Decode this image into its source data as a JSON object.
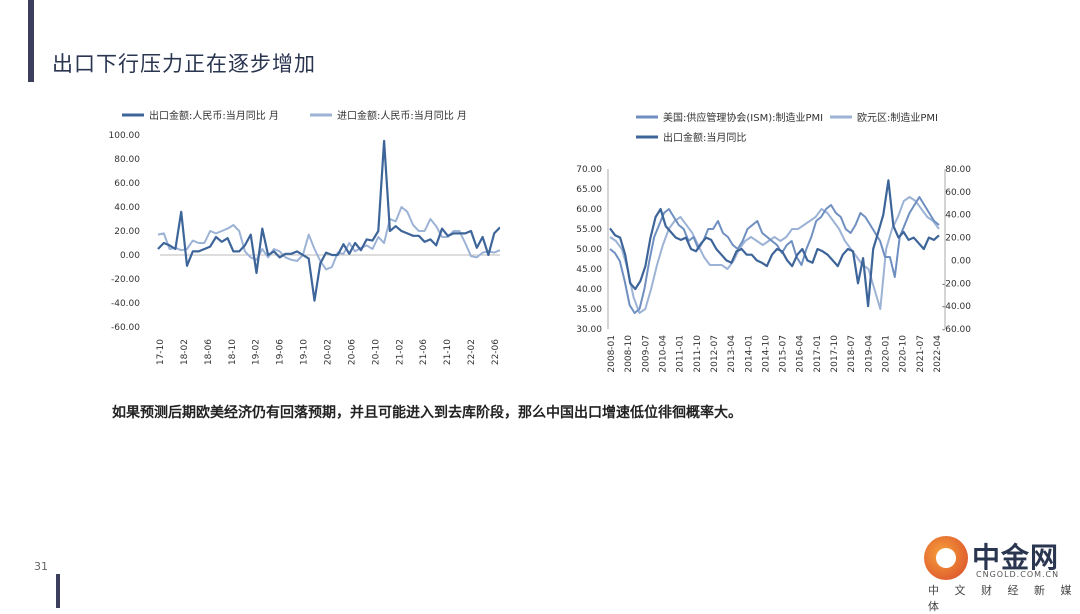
{
  "page": {
    "title": "出口下行压力正在逐步增加",
    "caption": "如果预测后期欧美经济仍有回落预期，并且可能进入到去库阶段，那么中国出口增速低位徘徊概率大。",
    "page_number": "31",
    "logo": {
      "name": "中金网",
      "domain": "CNGOLD.COM.CN",
      "tagline": "中 文 财 经 新 媒 体"
    }
  },
  "colors": {
    "dark_series": "#3e6599",
    "light_series": "#9db3d6",
    "title": "#2a3550"
  },
  "chart_data": [
    {
      "type": "line",
      "legend": [
        "出口金额:人民币:当月同比 月",
        "进口金额:人民币:当月同比 月"
      ],
      "ylim": [
        -60,
        100
      ],
      "yticks": [
        "100.00",
        "80.00",
        "60.00",
        "40.00",
        "20.00",
        "0.00",
        "-20.00",
        "-40.00",
        "-60.00"
      ],
      "xticks": [
        "2017-10",
        "2018-02",
        "2018-06",
        "2018-10",
        "2019-02",
        "2019-06",
        "2019-10",
        "2020-02",
        "2020-06",
        "2020-10",
        "2021-02",
        "2021-06",
        "2021-10",
        "2022-02",
        "2022-06"
      ],
      "series": [
        {
          "name": "出口金额:人民币:当月同比 月",
          "color": "dark",
          "values": [
            5,
            10,
            8,
            5,
            36,
            -9,
            3,
            3,
            5,
            7,
            15,
            11,
            14,
            3,
            3,
            8,
            17,
            -15,
            22,
            0,
            3,
            -2,
            1,
            1,
            3,
            0,
            -3,
            -38,
            -7,
            2,
            0,
            0,
            9,
            1,
            10,
            4,
            13,
            12,
            20,
            95,
            20,
            24,
            20,
            18,
            16,
            16,
            11,
            13,
            8,
            22,
            16,
            18,
            18,
            18,
            20,
            6,
            15,
            0,
            18,
            23
          ]
        },
        {
          "name": "进口金额:人民币:当月同比 月",
          "color": "light",
          "values": [
            17,
            18,
            5,
            6,
            4,
            5,
            12,
            10,
            10,
            20,
            18,
            20,
            22,
            25,
            20,
            3,
            -2,
            -4,
            5,
            -2,
            5,
            3,
            -2,
            -4,
            -5,
            0,
            17,
            5,
            -5,
            -12,
            -10,
            2,
            1,
            10,
            3,
            6,
            8,
            5,
            15,
            10,
            30,
            28,
            40,
            36,
            25,
            20,
            20,
            30,
            24,
            15,
            15,
            20,
            20,
            10,
            -1,
            -2,
            2,
            3,
            2,
            4
          ]
        }
      ]
    },
    {
      "type": "line",
      "legend": [
        "美国:供应管理协会(ISM):制造业PMI",
        "欧元区:制造业PMI",
        "出口金额:当月同比"
      ],
      "ylim_left": [
        30,
        70
      ],
      "ylim_right": [
        -60,
        80
      ],
      "yticks_left": [
        "70.00",
        "65.00",
        "60.00",
        "55.00",
        "50.00",
        "45.00",
        "40.00",
        "35.00",
        "30.00"
      ],
      "yticks_right": [
        "80.00",
        "60.00",
        "40.00",
        "20.00",
        "0.00",
        "-20.00",
        "-40.00",
        "-60.00"
      ],
      "xticks": [
        "2008-01",
        "2008-10",
        "2009-07",
        "2010-04",
        "2011-01",
        "2011-10",
        "2012-07",
        "2013-04",
        "2014-01",
        "2014-10",
        "2015-07",
        "2016-04",
        "2017-01",
        "2017-10",
        "2018-07",
        "2019-04",
        "2020-01",
        "2020-10",
        "2021-07",
        "2022-04"
      ],
      "series": [
        {
          "name": "美国:供应管理协会(ISM):制造业PMI",
          "color": "mid",
          "axis": "left",
          "values": [
            50,
            49,
            47,
            42,
            36,
            34,
            35,
            40,
            47,
            53,
            56,
            59,
            60,
            58,
            56,
            55,
            52,
            53,
            50,
            52,
            55,
            55,
            57,
            54,
            53,
            51,
            50,
            52,
            55,
            56,
            57,
            54,
            53,
            52,
            51,
            49,
            51,
            52,
            48,
            46,
            50,
            53,
            57,
            58,
            60,
            61,
            59,
            58,
            55,
            54,
            56,
            59,
            58,
            56,
            54,
            52,
            48,
            48,
            43,
            53,
            56,
            59,
            61,
            63,
            61,
            59,
            57,
            56
          ]
        },
        {
          "name": "欧元区:制造业PMI",
          "color": "light",
          "axis": "left",
          "values": [
            53,
            52,
            50,
            45,
            38,
            34,
            35,
            40,
            46,
            51,
            55,
            57,
            58,
            56,
            54,
            51,
            48,
            46,
            46,
            46,
            45,
            47,
            50,
            52,
            53,
            52,
            51,
            52,
            53,
            52,
            53,
            55,
            55,
            56,
            57,
            58,
            60,
            59,
            57,
            55,
            52,
            50,
            48,
            46,
            45,
            40,
            35,
            50,
            55,
            58,
            62,
            63,
            62,
            60,
            58,
            57,
            55
          ]
        },
        {
          "name": "出口金额:当月同比",
          "color": "dark",
          "axis": "right",
          "values": [
            28,
            22,
            20,
            5,
            -20,
            -25,
            -18,
            -5,
            20,
            38,
            45,
            30,
            25,
            20,
            18,
            20,
            10,
            8,
            15,
            20,
            18,
            10,
            5,
            0,
            -2,
            8,
            10,
            5,
            5,
            0,
            -2,
            -5,
            5,
            10,
            8,
            0,
            -5,
            5,
            10,
            0,
            -2,
            10,
            8,
            5,
            0,
            -5,
            5,
            10,
            8,
            -20,
            2,
            -40,
            10,
            25,
            40,
            70,
            30,
            20,
            25,
            18,
            20,
            15,
            10,
            20,
            18,
            22
          ]
        }
      ]
    }
  ]
}
